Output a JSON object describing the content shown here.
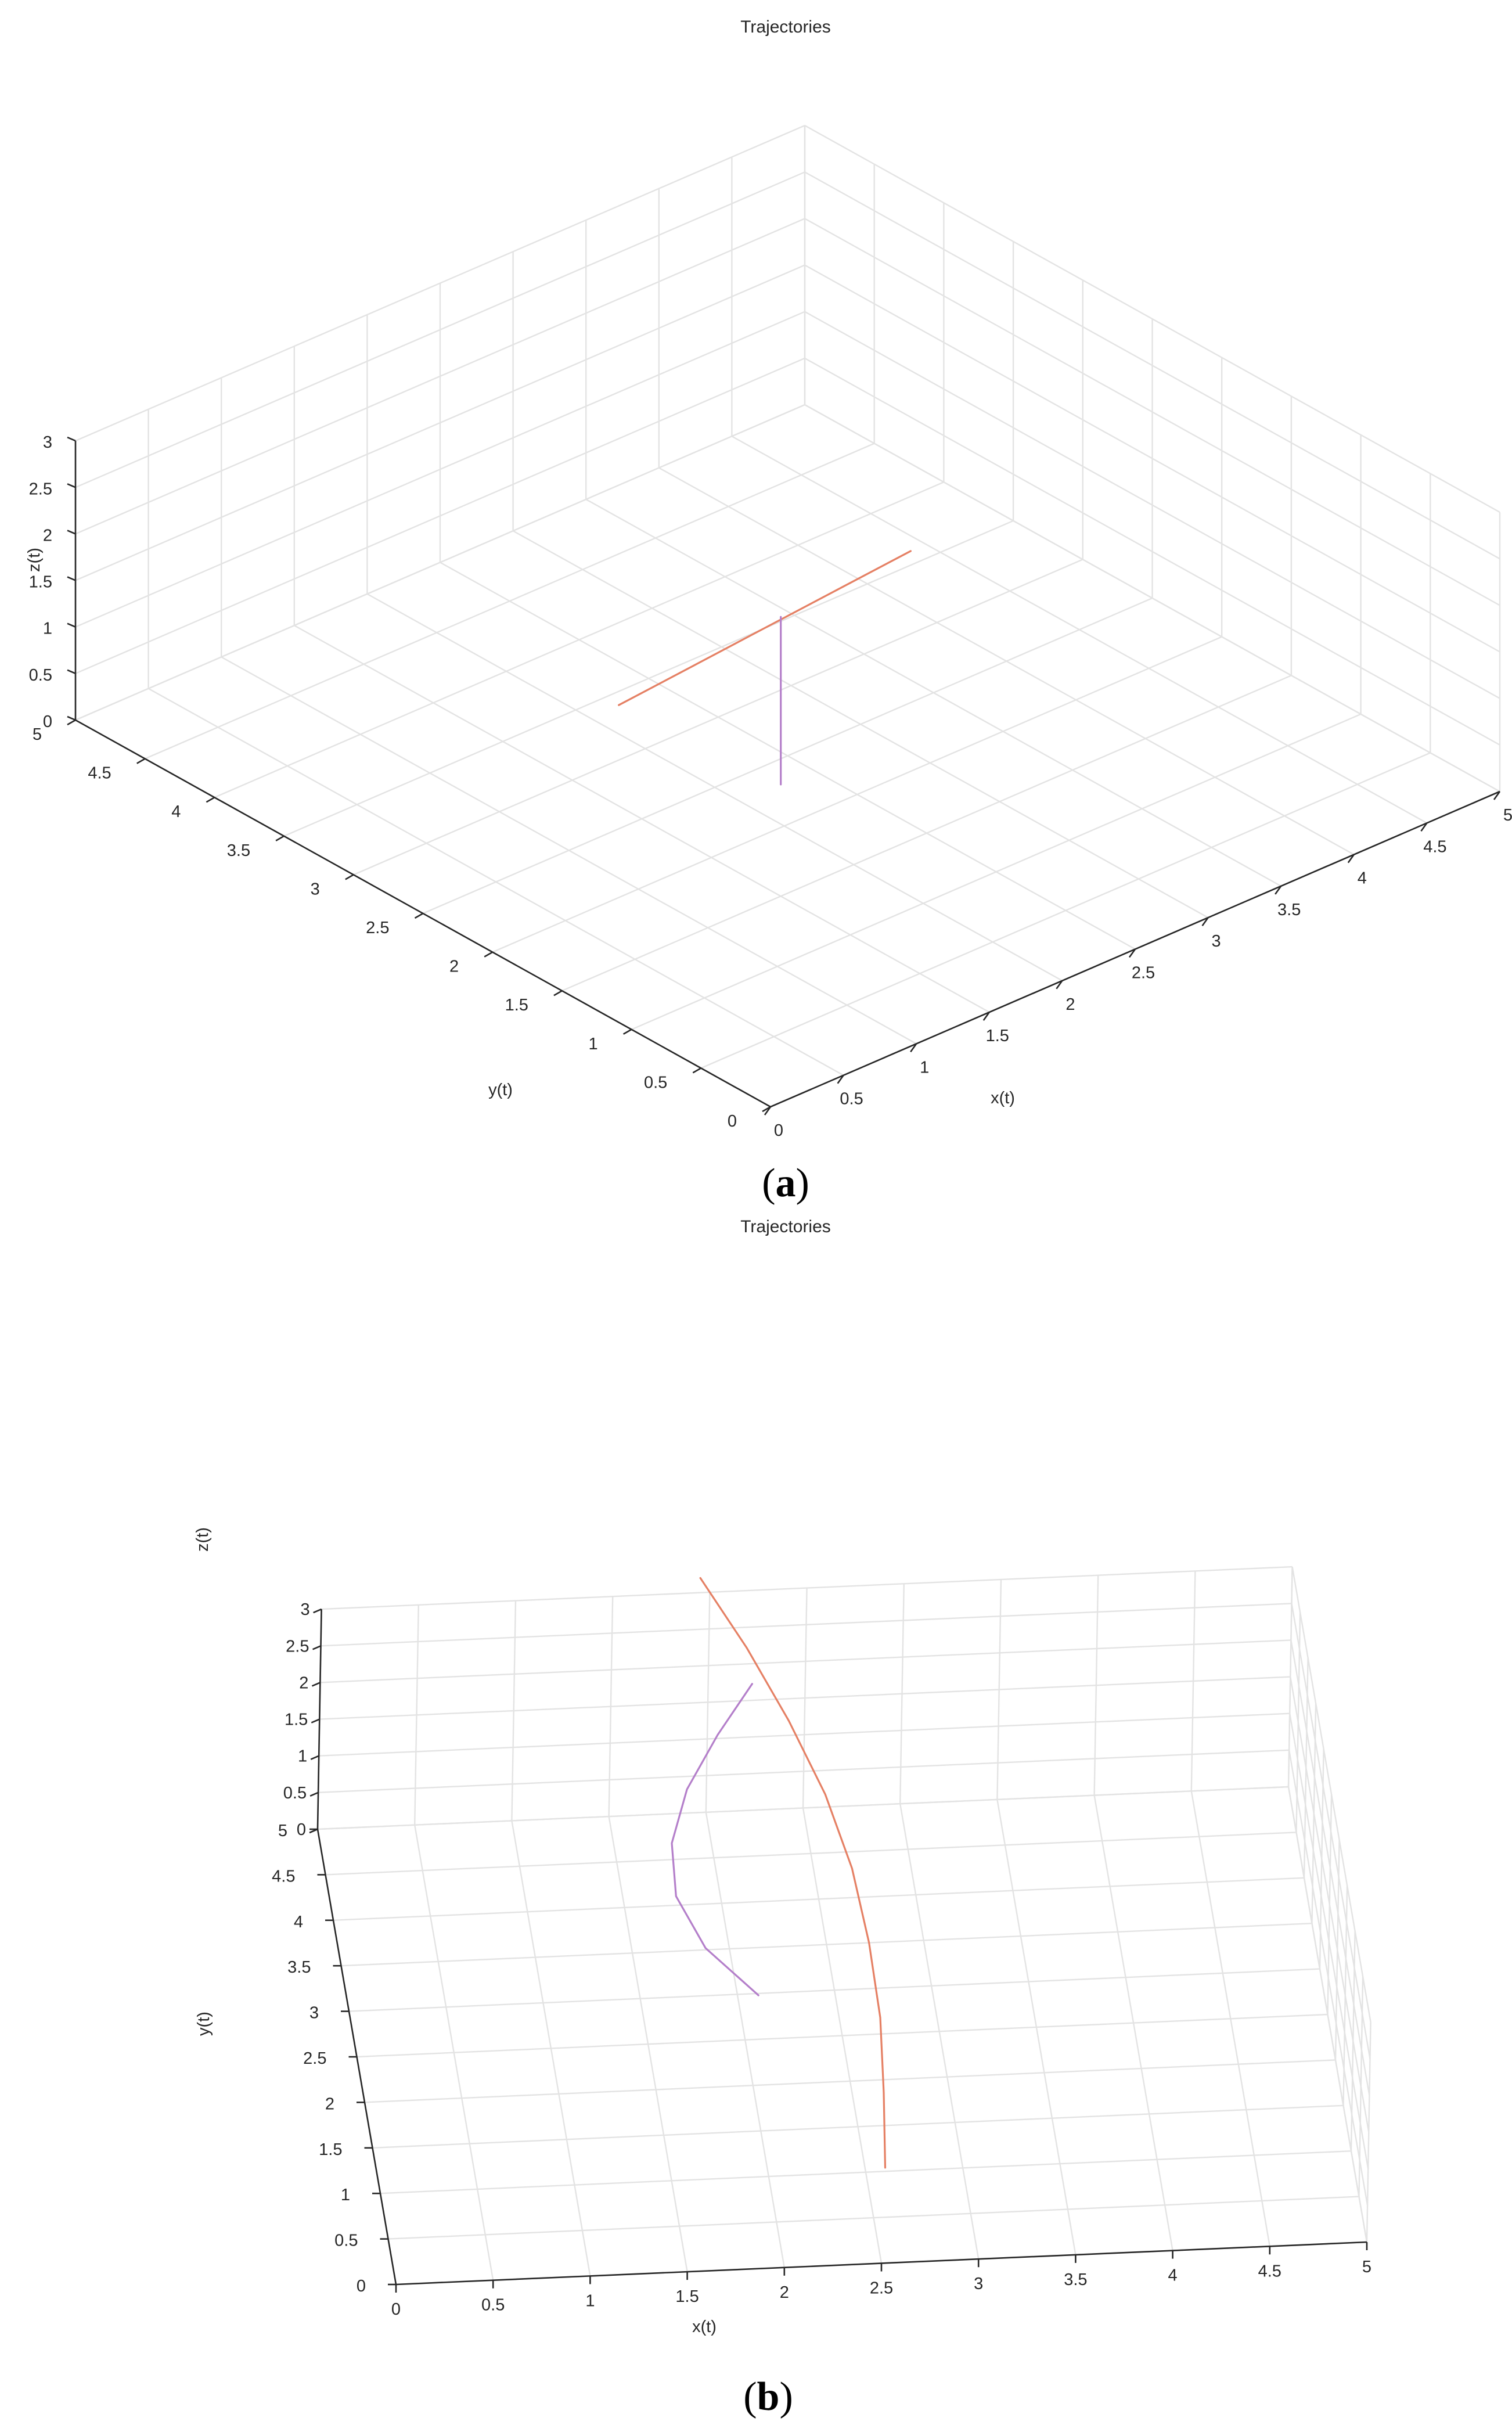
{
  "chart_data": [
    {
      "type": "line",
      "subtype": "line3d",
      "panel": "(a)",
      "caption_letter": "a",
      "title": "Trajectories",
      "xlabel": "x(t)",
      "ylabel": "y(t)",
      "zlabel": "z(t)",
      "xlim": [
        0,
        5
      ],
      "ylim": [
        0,
        5
      ],
      "zlim": [
        0,
        3
      ],
      "grid": true,
      "ticks": {
        "x": [
          "0",
          "0.5",
          "1",
          "1.5",
          "2",
          "2.5",
          "3",
          "3.5",
          "4",
          "4.5",
          "5"
        ],
        "y": [
          "0",
          "0.5",
          "1",
          "1.5",
          "2",
          "2.5",
          "3",
          "3.5",
          "4",
          "4.5",
          "5"
        ],
        "z": [
          "0",
          "0.5",
          "1",
          "1.5",
          "2",
          "2.5",
          "3"
        ]
      },
      "series": [
        {
          "color": "#e58064",
          "x": [
            2.2,
            2.2,
            2.2,
            2.2,
            2.2
          ],
          "y": [
            3.4,
            2.875,
            2.35,
            1.825,
            1.3
          ],
          "z": [
            0,
            0.85,
            1.7,
            2.55,
            3.4
          ]
        },
        {
          "color": "#b47fca",
          "x": [
            1.5,
            1.5,
            1.5
          ],
          "y": [
            1.5,
            1.5,
            1.5
          ],
          "z": [
            1.2,
            2.1,
            3.0
          ]
        }
      ]
    },
    {
      "type": "line",
      "subtype": "line3d",
      "panel": "(b)",
      "caption_letter": "b",
      "title": "Trajectories",
      "xlabel": "x(t)",
      "ylabel": "y(t)",
      "zlabel": "z(t)",
      "xlim": [
        0,
        5
      ],
      "ylim": [
        0,
        5
      ],
      "zlim": [
        0,
        3
      ],
      "grid": true,
      "ticks": {
        "x": [
          "0",
          "0.5",
          "1",
          "1.5",
          "2",
          "2.5",
          "3",
          "3.5",
          "4",
          "4.5",
          "5"
        ],
        "y": [
          "0",
          "0.5",
          "1",
          "1.5",
          "2",
          "2.5",
          "3",
          "3.5",
          "4",
          "4.5",
          "5"
        ],
        "z": [
          "0",
          "0.5",
          "1",
          "1.5",
          "2",
          "2.5",
          "3"
        ]
      },
      "series": [
        {
          "color": "#e58064",
          "x": [
            2.6,
            2.63,
            2.65,
            2.63,
            2.58,
            2.48,
            2.33,
            2.15,
            1.95
          ],
          "y": [
            1.0,
            1.5,
            2.0,
            2.5,
            3.0,
            3.5,
            4.0,
            4.5,
            5.0
          ],
          "z": [
            0.05,
            0.45,
            0.85,
            1.25,
            1.65,
            2.05,
            2.45,
            2.85,
            3.2
          ]
        },
        {
          "color": "#b47fca",
          "x": [
            2.1,
            1.85,
            1.72,
            1.72,
            1.82,
            2.0,
            2.2
          ],
          "y": [
            2.9,
            3.2,
            3.5,
            3.8,
            4.1,
            4.4,
            4.7
          ],
          "z": [
            0.1,
            0.4,
            0.75,
            1.1,
            1.45,
            1.8,
            2.1
          ]
        }
      ]
    }
  ]
}
